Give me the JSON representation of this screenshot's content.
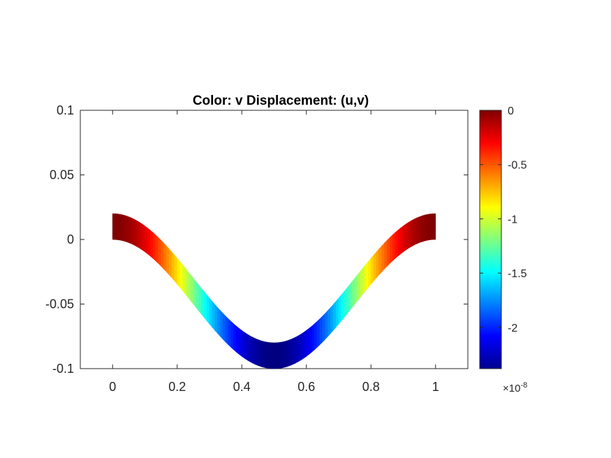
{
  "chart_data": {
    "type": "heatmap",
    "title": "Color: v  Displacement: (u,v)",
    "xlabel": "",
    "ylabel": "",
    "xlim": [
      -0.1,
      1.1
    ],
    "ylim": [
      -0.1,
      0.1
    ],
    "x_ticks": [
      0,
      0.2,
      0.4,
      0.6,
      0.8,
      1
    ],
    "x_tick_labels": [
      "0",
      "0.2",
      "0.4",
      "0.6",
      "0.8",
      "1"
    ],
    "y_ticks": [
      -0.1,
      -0.05,
      0,
      0.05,
      0.1
    ],
    "y_tick_labels": [
      "-0.1",
      "-0.05",
      "0",
      "0.05",
      "0.1"
    ],
    "grid": false,
    "colormap": "jet",
    "colorbar": {
      "range": [
        -2.38e-08,
        0
      ],
      "ticks": [
        0,
        -0.5,
        -1,
        -1.5,
        -2
      ],
      "tick_labels": [
        "0",
        "-0.5",
        "-1",
        "-1.5",
        "-2"
      ],
      "multiplier_base": "×10",
      "multiplier_exponent": "-8",
      "position": "right"
    },
    "beam": {
      "x_range": [
        0,
        1
      ],
      "thickness": 0.02,
      "deflected_shape": "v(x) = -0.05*(1 - cos(2*pi*x))",
      "max_deflection": -0.1,
      "color_value": "v scaled to colorbar range"
    }
  }
}
